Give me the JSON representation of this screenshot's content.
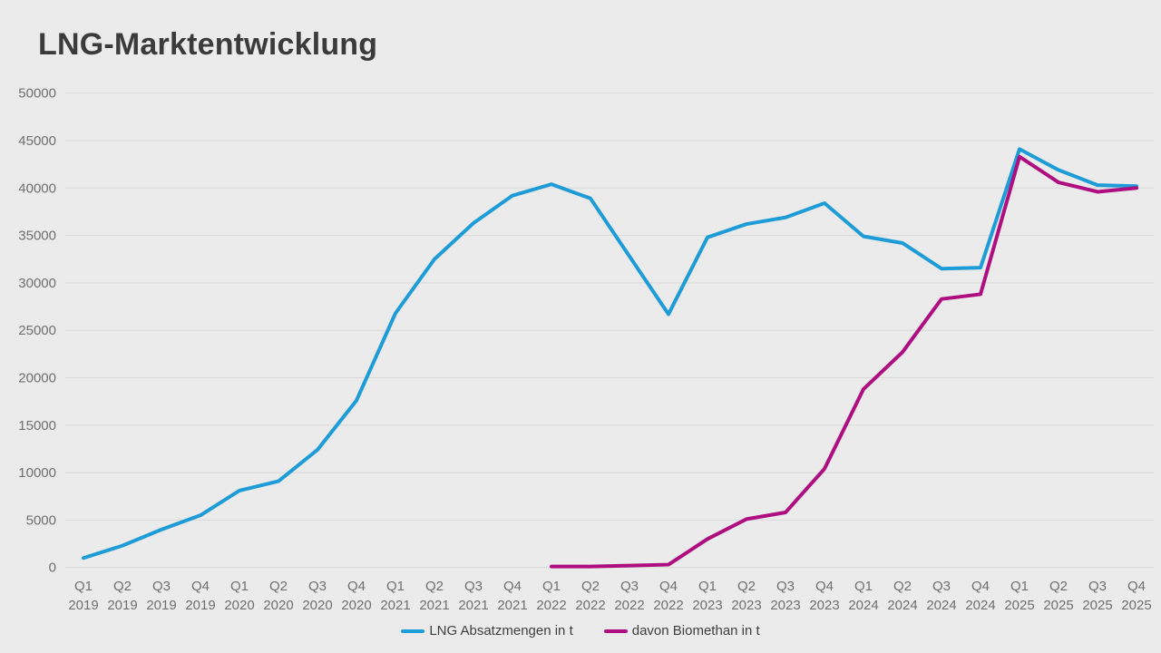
{
  "title": "LNG-Marktentwicklung",
  "colors": {
    "background": "#ebebeb",
    "gridline": "#d9d9d9",
    "title_text": "#3b3b3b",
    "axis_text": "#6f6f6f",
    "legend_text": "#3f3f3f",
    "series_blue": "#1e9cd7",
    "series_magenta": "#ae0e7f"
  },
  "chart_data": {
    "type": "line",
    "title": "LNG-Marktentwicklung",
    "xlabel": "",
    "ylabel": "",
    "ylim": [
      0,
      50000
    ],
    "y_ticks": [
      0,
      5000,
      10000,
      15000,
      20000,
      25000,
      30000,
      35000,
      40000,
      45000,
      50000
    ],
    "grid": true,
    "legend_position": "bottom",
    "categories": [
      "Q1 2019",
      "Q2 2019",
      "Q3 2019",
      "Q4 2019",
      "Q1 2020",
      "Q2 2020",
      "Q3 2020",
      "Q4 2020",
      "Q1 2021",
      "Q2 2021",
      "Q3 2021",
      "Q4 2021",
      "Q1 2022",
      "Q2 2022",
      "Q3 2022",
      "Q4 2022",
      "Q1 2023",
      "Q2 2023",
      "Q3 2023",
      "Q4 2023",
      "Q1 2024",
      "Q2 2024",
      "Q3 2024",
      "Q4 2024",
      "Q1 2025",
      "Q2 2025",
      "Q3 2025",
      "Q4 2025"
    ],
    "series": [
      {
        "name": "LNG Absatzmengen in t",
        "color": "#1e9cd7",
        "values": [
          1000,
          2300,
          4000,
          5500,
          8100,
          9100,
          12400,
          17600,
          26800,
          32500,
          36300,
          39200,
          40400,
          38900,
          32800,
          26700,
          34800,
          36200,
          36900,
          38400,
          34900,
          34200,
          31500,
          31600,
          44100,
          41900,
          40300,
          40200
        ]
      },
      {
        "name": "davon Biomethan in t",
        "color": "#ae0e7f",
        "values": [
          null,
          null,
          null,
          null,
          null,
          null,
          null,
          null,
          null,
          null,
          null,
          null,
          100,
          100,
          200,
          300,
          3000,
          5100,
          5800,
          10400,
          18800,
          22700,
          28300,
          28800,
          43300,
          40600,
          39600,
          40000
        ]
      }
    ]
  }
}
